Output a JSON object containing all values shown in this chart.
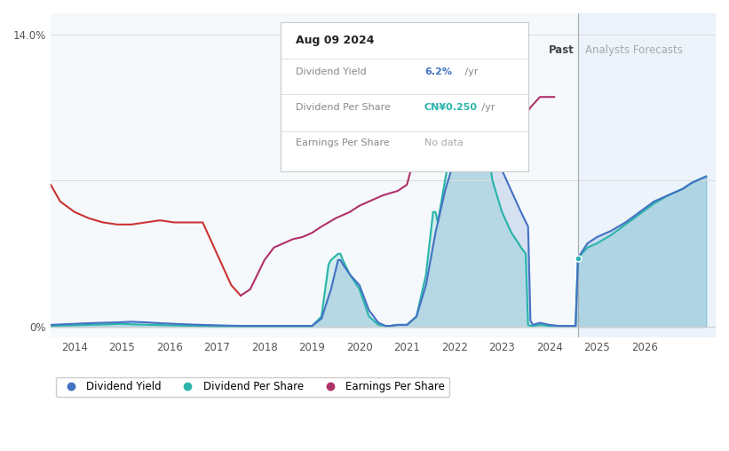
{
  "bg_color": "#ffffff",
  "plot_bg_color": "#ffffff",
  "ylim": [
    -0.5,
    15.0
  ],
  "xlim": [
    2013.5,
    2027.5
  ],
  "ytick_positions": [
    0,
    7,
    14
  ],
  "ytick_labels": [
    "0%",
    "",
    "14.0%"
  ],
  "xticks": [
    2014,
    2015,
    2016,
    2017,
    2018,
    2019,
    2020,
    2021,
    2022,
    2023,
    2024,
    2025,
    2026
  ],
  "past_region_start": 2023.65,
  "past_region_end": 2024.6,
  "forecast_region_start": 2024.6,
  "forecast_region_end": 2027.5,
  "past_label": "Past",
  "forecast_label": "Analysts Forecasts",
  "div_yield_color": "#4472c4",
  "div_per_share_color": "#2ab5ab",
  "earnings_color_early": "#cc3333",
  "earnings_color_late": "#b0306a",
  "earnings_split_x": 2017.5,
  "fill_alpha": 0.18,
  "tooltip_date": "Aug 09 2024",
  "tooltip_dy_label": "Dividend Yield",
  "tooltip_dy_value": "6.2%",
  "tooltip_dy_unit": " /yr",
  "tooltip_dy_color": "#4472c4",
  "tooltip_dps_label": "Dividend Per Share",
  "tooltip_dps_value": "CN¥0.250",
  "tooltip_dps_unit": " /yr",
  "tooltip_dps_color": "#2ab5ab",
  "tooltip_eps_label": "Earnings Per Share",
  "tooltip_eps_value": "No data",
  "legend_items": [
    "Dividend Yield",
    "Dividend Per Share",
    "Earnings Per Share"
  ],
  "legend_colors": [
    "#4472c4",
    "#2ab5ab",
    "#b0306a"
  ],
  "dot_x": 2024.6,
  "dot_y": 3.3,
  "div_yield_data": {
    "x": [
      2013.5,
      2014.0,
      2014.3,
      2014.6,
      2014.9,
      2015.2,
      2015.5,
      2015.8,
      2016.1,
      2016.4,
      2016.7,
      2017.0,
      2017.3,
      2017.6,
      2017.9,
      2018.0,
      2018.2,
      2018.5,
      2018.8,
      2019.0,
      2019.2,
      2019.4,
      2019.55,
      2019.6,
      2019.65,
      2019.8,
      2020.0,
      2020.2,
      2020.4,
      2020.55,
      2020.6,
      2020.65,
      2020.8,
      2021.0,
      2021.2,
      2021.4,
      2021.6,
      2021.8,
      2022.0,
      2022.15,
      2022.25,
      2022.4,
      2022.6,
      2022.8,
      2023.0,
      2023.2,
      2023.4,
      2023.55,
      2023.6,
      2023.65,
      2023.8,
      2024.0,
      2024.2,
      2024.55,
      2024.6,
      2024.8,
      2025.0,
      2025.3,
      2025.6,
      2025.9,
      2026.2,
      2026.5,
      2026.8,
      2027.0,
      2027.3
    ],
    "y": [
      0.1,
      0.15,
      0.18,
      0.2,
      0.22,
      0.25,
      0.22,
      0.18,
      0.15,
      0.12,
      0.1,
      0.08,
      0.06,
      0.05,
      0.05,
      0.05,
      0.05,
      0.05,
      0.05,
      0.05,
      0.4,
      1.8,
      3.2,
      3.2,
      3.0,
      2.5,
      2.0,
      0.8,
      0.2,
      0.05,
      0.05,
      0.05,
      0.1,
      0.1,
      0.5,
      2.0,
      4.5,
      6.5,
      8.0,
      11.0,
      12.5,
      12.5,
      11.0,
      9.0,
      7.5,
      6.5,
      5.5,
      4.8,
      0.3,
      0.1,
      0.2,
      0.1,
      0.05,
      0.05,
      3.3,
      4.0,
      4.3,
      4.6,
      5.0,
      5.5,
      6.0,
      6.3,
      6.6,
      6.9,
      7.2
    ]
  },
  "div_per_share_data": {
    "x": [
      2013.5,
      2014.0,
      2014.3,
      2014.6,
      2015.0,
      2015.3,
      2015.6,
      2016.0,
      2016.3,
      2016.6,
      2017.0,
      2017.3,
      2017.6,
      2018.0,
      2018.3,
      2018.6,
      2019.0,
      2019.2,
      2019.35,
      2019.4,
      2019.55,
      2019.6,
      2019.65,
      2019.8,
      2020.0,
      2020.2,
      2020.4,
      2020.55,
      2020.6,
      2020.65,
      2020.8,
      2021.0,
      2021.2,
      2021.4,
      2021.55,
      2021.6,
      2021.65,
      2021.8,
      2022.0,
      2022.15,
      2022.25,
      2022.4,
      2022.6,
      2022.8,
      2023.0,
      2023.2,
      2023.35,
      2023.4,
      2023.5,
      2023.55,
      2023.6,
      2023.65,
      2023.8,
      2024.0,
      2024.2,
      2024.55,
      2024.6,
      2024.8,
      2025.0,
      2025.3,
      2025.6,
      2025.9,
      2026.2,
      2026.5,
      2026.8,
      2027.0,
      2027.3
    ],
    "y": [
      0.05,
      0.08,
      0.1,
      0.12,
      0.15,
      0.12,
      0.1,
      0.08,
      0.06,
      0.05,
      0.04,
      0.04,
      0.04,
      0.04,
      0.04,
      0.04,
      0.04,
      0.5,
      3.0,
      3.2,
      3.5,
      3.5,
      3.2,
      2.5,
      1.8,
      0.5,
      0.1,
      0.05,
      0.05,
      0.05,
      0.1,
      0.1,
      0.5,
      2.5,
      5.5,
      5.5,
      5.0,
      7.0,
      9.5,
      13.5,
      13.8,
      13.0,
      10.0,
      7.0,
      5.5,
      4.5,
      4.0,
      3.8,
      3.5,
      0.1,
      0.05,
      0.05,
      0.1,
      0.05,
      0.05,
      0.05,
      3.3,
      3.8,
      4.0,
      4.4,
      4.9,
      5.4,
      5.9,
      6.3,
      6.6,
      6.9,
      7.2
    ]
  },
  "earnings_data": {
    "x": [
      2013.5,
      2013.7,
      2014.0,
      2014.3,
      2014.6,
      2014.9,
      2015.2,
      2015.5,
      2015.8,
      2016.1,
      2016.4,
      2016.7,
      2017.0,
      2017.3,
      2017.5,
      2017.7,
      2018.0,
      2018.2,
      2018.4,
      2018.6,
      2018.8,
      2019.0,
      2019.2,
      2019.5,
      2019.8,
      2020.0,
      2020.2,
      2020.5,
      2020.8,
      2021.0,
      2021.2,
      2021.4,
      2021.6,
      2021.8,
      2022.0,
      2022.2,
      2022.4,
      2022.6,
      2022.8,
      2023.0,
      2023.2,
      2023.4,
      2023.6,
      2023.8,
      2024.0,
      2024.1
    ],
    "y": [
      6.8,
      6.0,
      5.5,
      5.2,
      5.0,
      4.9,
      4.9,
      5.0,
      5.1,
      5.0,
      5.0,
      5.0,
      3.5,
      2.0,
      1.5,
      1.8,
      3.2,
      3.8,
      4.0,
      4.2,
      4.3,
      4.5,
      4.8,
      5.2,
      5.5,
      5.8,
      6.0,
      6.3,
      6.5,
      6.8,
      8.5,
      10.0,
      10.8,
      10.5,
      9.5,
      9.0,
      9.5,
      10.0,
      10.3,
      10.0,
      9.5,
      9.8,
      10.5,
      11.0,
      11.0,
      11.0
    ]
  }
}
